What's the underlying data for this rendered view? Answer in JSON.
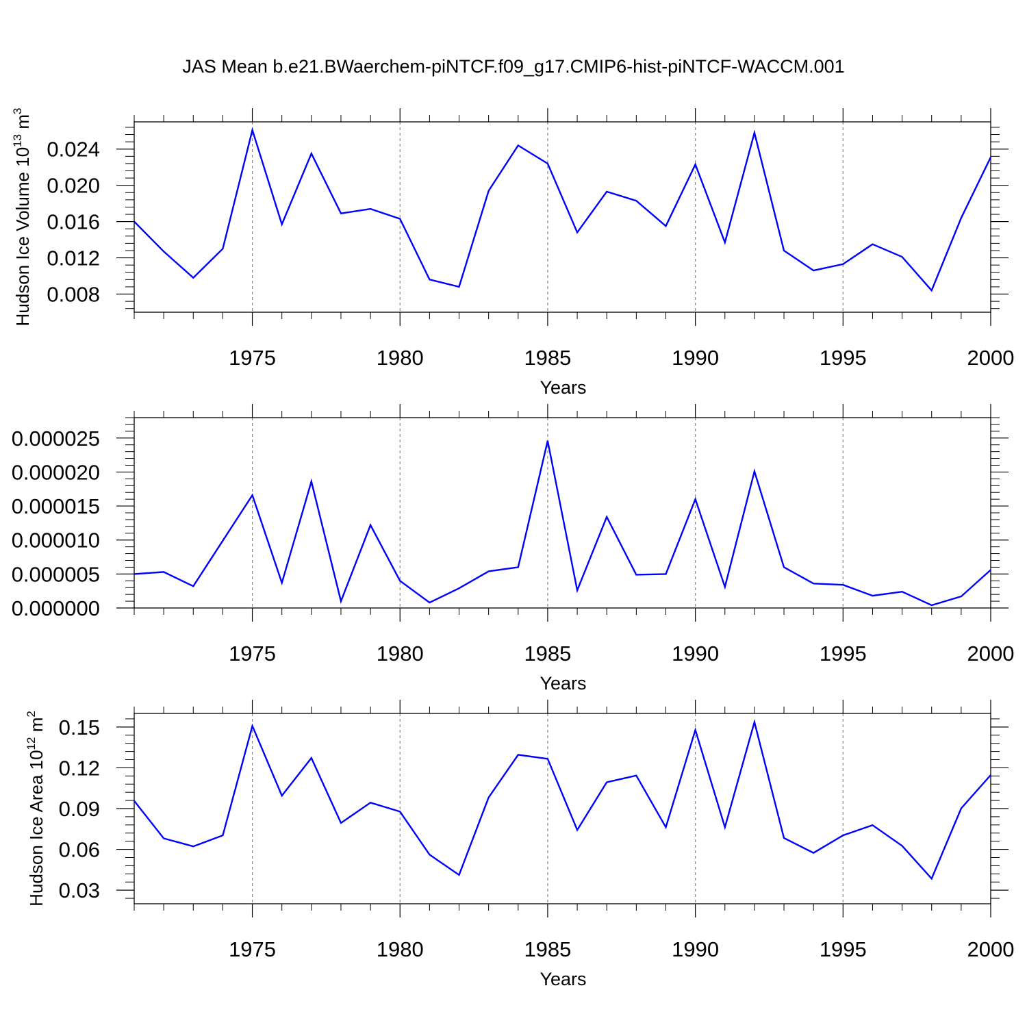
{
  "title": "JAS Mean b.e21.BWaerchem-piNTCF.f09_g17.CMIP6-hist-piNTCF-WACCM.001",
  "line_color": "#0000ff",
  "chart_data": [
    {
      "type": "line",
      "ylabel_main": "Hudson Ice Volume 10",
      "ylabel_exp": "13",
      "ylabel_unit": " m",
      "ylabel_unit_exp": "3",
      "xlabel": "Years",
      "xlim": [
        1971,
        2000
      ],
      "ylim": [
        0.006,
        0.027
      ],
      "yticks": [
        0.008,
        0.012,
        0.016,
        0.02,
        0.024
      ],
      "ytick_labels": [
        "0.008",
        "0.012",
        "0.016",
        "0.020",
        "0.024"
      ],
      "xticks": [
        1975,
        1980,
        1985,
        1990,
        1995,
        2000
      ],
      "xtick_labels": [
        "1975",
        "1980",
        "1985",
        "1990",
        "1995",
        "2000"
      ],
      "x": [
        1971,
        1972,
        1973,
        1974,
        1975,
        1976,
        1977,
        1978,
        1979,
        1980,
        1981,
        1982,
        1983,
        1984,
        1985,
        1986,
        1987,
        1988,
        1989,
        1990,
        1991,
        1992,
        1993,
        1994,
        1995,
        1996,
        1997,
        1998,
        1999,
        2000
      ],
      "values": [
        0.016,
        0.0127,
        0.0098,
        0.013,
        0.0261,
        0.0157,
        0.0235,
        0.0169,
        0.0174,
        0.0163,
        0.0096,
        0.0088,
        0.0194,
        0.0244,
        0.0224,
        0.0148,
        0.0193,
        0.0183,
        0.0155,
        0.0223,
        0.0137,
        0.0258,
        0.0128,
        0.0106,
        0.0113,
        0.0135,
        0.0121,
        0.0084,
        0.0164,
        0.0231
      ]
    },
    {
      "type": "line",
      "xlabel": "Years",
      "xlim": [
        1971,
        2000
      ],
      "ylim": [
        0.0,
        2.8e-05
      ],
      "yticks": [
        0.0,
        5e-06,
        1e-05,
        1.5e-05,
        2e-05,
        2.5e-05
      ],
      "ytick_labels": [
        "0.000000",
        "0.000005",
        "0.000010",
        "0.000015",
        "0.000020",
        "0.000025"
      ],
      "xticks": [
        1975,
        1980,
        1985,
        1990,
        1995,
        2000
      ],
      "xtick_labels": [
        "1975",
        "1980",
        "1985",
        "1990",
        "1995",
        "2000"
      ],
      "x": [
        1971,
        1972,
        1973,
        1974,
        1975,
        1976,
        1977,
        1978,
        1979,
        1980,
        1981,
        1982,
        1983,
        1984,
        1985,
        1986,
        1987,
        1988,
        1989,
        1990,
        1991,
        1992,
        1993,
        1994,
        1995,
        1996,
        1997,
        1998,
        1999,
        2000
      ],
      "values": [
        5e-06,
        5.3e-06,
        3.2e-06,
        9.9e-06,
        1.66e-05,
        3.7e-06,
        1.86e-05,
        1e-06,
        1.22e-05,
        4e-06,
        8e-07,
        2.9e-06,
        5.4e-06,
        6e-06,
        2.46e-05,
        2.6e-06,
        1.34e-05,
        4.9e-06,
        5e-06,
        1.6e-05,
        3.1e-06,
        2.01e-05,
        6e-06,
        3.6e-06,
        3.4e-06,
        1.8e-06,
        2.4e-06,
        4e-07,
        1.7e-06,
        5.6e-06
      ]
    },
    {
      "type": "line",
      "ylabel_main": "Hudson Ice Area 10",
      "ylabel_exp": "12",
      "ylabel_unit": " m",
      "ylabel_unit_exp": "2",
      "xlabel": "Years",
      "xlim": [
        1971,
        2000
      ],
      "ylim": [
        0.02,
        0.16
      ],
      "yticks": [
        0.03,
        0.06,
        0.09,
        0.12,
        0.15
      ],
      "ytick_labels": [
        "0.03",
        "0.06",
        "0.09",
        "0.12",
        "0.15"
      ],
      "xticks": [
        1975,
        1980,
        1985,
        1990,
        1995,
        2000
      ],
      "xtick_labels": [
        "1975",
        "1980",
        "1985",
        "1990",
        "1995",
        "2000"
      ],
      "x": [
        1971,
        1972,
        1973,
        1974,
        1975,
        1976,
        1977,
        1978,
        1979,
        1980,
        1981,
        1982,
        1983,
        1984,
        1985,
        1986,
        1987,
        1988,
        1989,
        1990,
        1991,
        1992,
        1993,
        1994,
        1995,
        1996,
        1997,
        1998,
        1999,
        2000
      ],
      "values": [
        0.0957,
        0.0681,
        0.0622,
        0.0703,
        0.1508,
        0.0995,
        0.1272,
        0.0794,
        0.0944,
        0.0878,
        0.0561,
        0.0412,
        0.0982,
        0.1296,
        0.1266,
        0.0743,
        0.1094,
        0.1143,
        0.0763,
        0.1478,
        0.0763,
        0.1536,
        0.0684,
        0.0574,
        0.0703,
        0.0778,
        0.0626,
        0.0385,
        0.0902,
        0.1147
      ]
    }
  ]
}
